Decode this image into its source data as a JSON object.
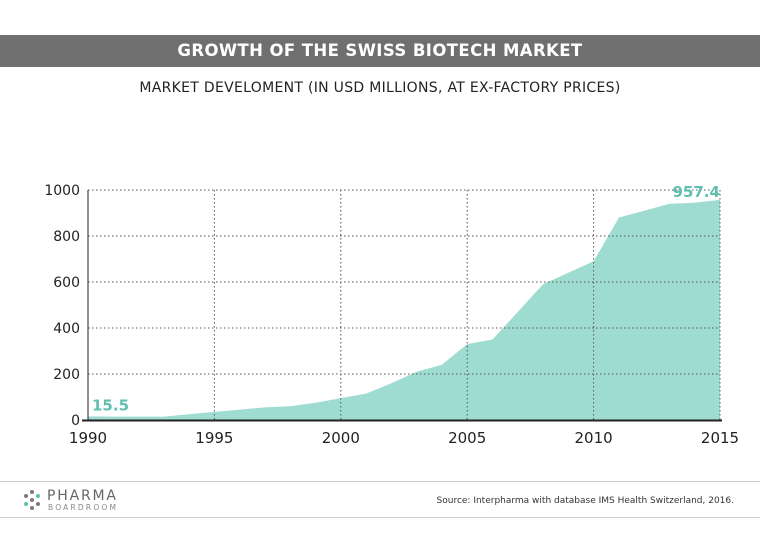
{
  "header": {
    "title": "GROWTH OF THE SWISS BIOTECH MARKET",
    "subtitle": "MARKET DEVELOMENT (IN USD MILLIONS, AT EX-FACTORY PRICES)"
  },
  "chart_data": {
    "type": "area",
    "title": "GROWTH OF THE SWISS BIOTECH MARKET",
    "subtitle": "MARKET DEVELOMENT (IN USD MILLIONS, AT EX-FACTORY PRICES)",
    "xlabel": "",
    "ylabel": "",
    "xlim": [
      1990,
      2015
    ],
    "ylim": [
      0,
      1000
    ],
    "x_ticks": [
      1990,
      1995,
      2000,
      2005,
      2010,
      2015
    ],
    "y_ticks": [
      0,
      200,
      400,
      600,
      800,
      1000
    ],
    "grid": true,
    "series": [
      {
        "name": "Swiss biotech market",
        "color": "#9edcd2",
        "x": [
          1990,
          1991,
          1992,
          1993,
          1994,
          1995,
          1996,
          1997,
          1998,
          1999,
          2000,
          2001,
          2002,
          2003,
          2004,
          2005,
          2006,
          2007,
          2008,
          2009,
          2010,
          2011,
          2012,
          2013,
          2014,
          2015
        ],
        "values": [
          15.5,
          15,
          15,
          15,
          25,
          35,
          45,
          55,
          60,
          75,
          95,
          115,
          160,
          210,
          240,
          330,
          350,
          470,
          590,
          640,
          690,
          880,
          910,
          940,
          945,
          957.4
        ]
      }
    ],
    "annotations": [
      {
        "label": "15.5",
        "x": 1990,
        "y": 15.5
      },
      {
        "label": "957.4",
        "x": 2015,
        "y": 957.4
      }
    ],
    "colors": {
      "area": "#9edcd2",
      "annotation": "#5fbfb0",
      "axis": "#222222",
      "grid": "#555555"
    }
  },
  "footer": {
    "brand_name": "PHARMA",
    "brand_sub": "BOARDROOM",
    "source": "Source: Interpharma with database IMS Health Switzerland, 2016."
  }
}
